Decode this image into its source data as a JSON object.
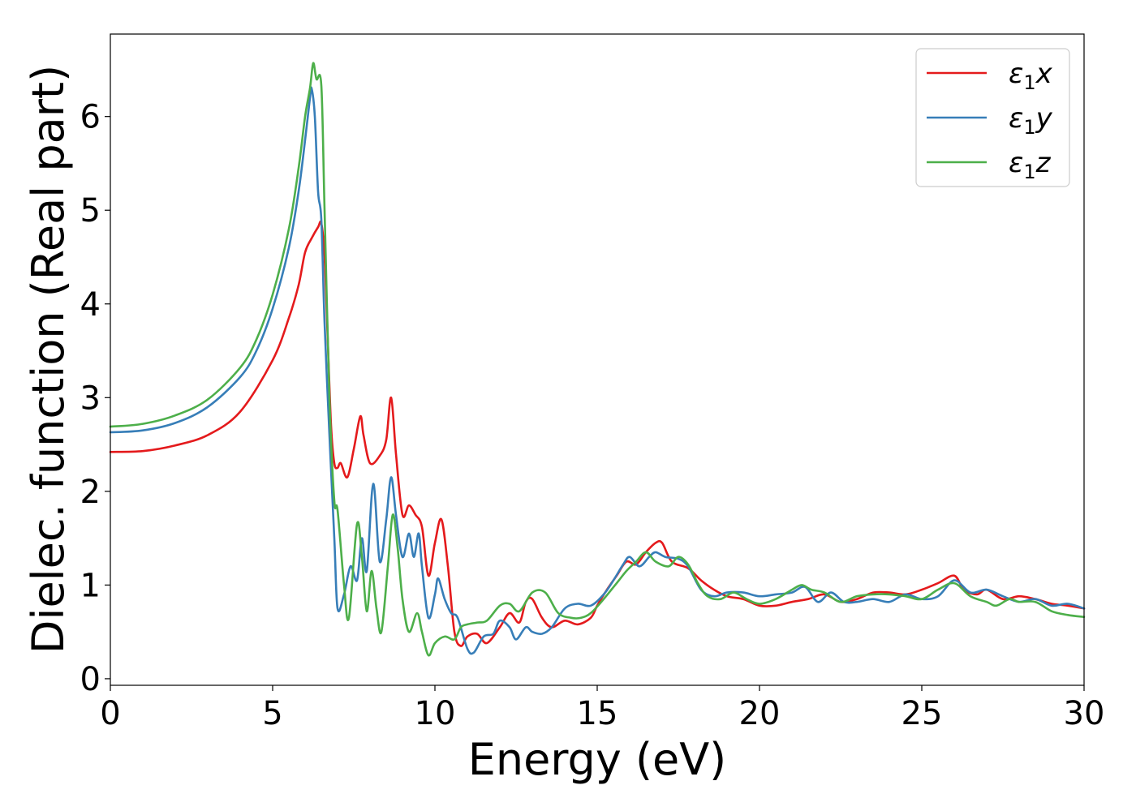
{
  "chart_data": {
    "type": "line",
    "title": "",
    "xlabel": "Energy (eV)",
    "ylabel": "Dielec. function (Real part)",
    "xlim": [
      0,
      30
    ],
    "ylim": [
      -0.07,
      6.88
    ],
    "xticks": [
      0,
      5,
      10,
      15,
      20,
      25,
      30
    ],
    "xtick_labels": [
      "0",
      "5",
      "10",
      "15",
      "20",
      "25",
      "30"
    ],
    "yticks": [
      0,
      1,
      2,
      3,
      4,
      5,
      6
    ],
    "ytick_labels": [
      "0",
      "1",
      "2",
      "3",
      "4",
      "5",
      "6"
    ],
    "grid": false,
    "legend_position": "top-right",
    "series": [
      {
        "name": "ε₁x",
        "legend_base": "ε",
        "legend_sub": "1",
        "legend_tail": "x",
        "color": "#e41a1c",
        "points": [
          [
            0,
            2.42
          ],
          [
            1,
            2.43
          ],
          [
            2,
            2.49
          ],
          [
            3,
            2.6
          ],
          [
            4,
            2.85
          ],
          [
            5,
            3.4
          ],
          [
            5.5,
            3.85
          ],
          [
            5.8,
            4.2
          ],
          [
            6.0,
            4.55
          ],
          [
            6.2,
            4.7
          ],
          [
            6.4,
            4.82
          ],
          [
            6.5,
            4.86
          ],
          [
            6.6,
            4.5
          ],
          [
            6.7,
            3.6
          ],
          [
            6.8,
            2.7
          ],
          [
            6.9,
            2.3
          ],
          [
            7.0,
            2.25
          ],
          [
            7.1,
            2.3
          ],
          [
            7.3,
            2.15
          ],
          [
            7.5,
            2.45
          ],
          [
            7.7,
            2.8
          ],
          [
            7.8,
            2.6
          ],
          [
            8.0,
            2.3
          ],
          [
            8.3,
            2.38
          ],
          [
            8.5,
            2.55
          ],
          [
            8.65,
            3.0
          ],
          [
            8.8,
            2.4
          ],
          [
            9.0,
            1.75
          ],
          [
            9.2,
            1.85
          ],
          [
            9.4,
            1.75
          ],
          [
            9.6,
            1.62
          ],
          [
            9.8,
            1.1
          ],
          [
            10.0,
            1.45
          ],
          [
            10.2,
            1.7
          ],
          [
            10.4,
            1.2
          ],
          [
            10.6,
            0.5
          ],
          [
            10.8,
            0.35
          ],
          [
            11.0,
            0.45
          ],
          [
            11.3,
            0.48
          ],
          [
            11.6,
            0.38
          ],
          [
            12.0,
            0.55
          ],
          [
            12.3,
            0.7
          ],
          [
            12.6,
            0.6
          ],
          [
            12.8,
            0.82
          ],
          [
            13.0,
            0.85
          ],
          [
            13.3,
            0.65
          ],
          [
            13.6,
            0.55
          ],
          [
            14.0,
            0.62
          ],
          [
            14.4,
            0.58
          ],
          [
            14.8,
            0.65
          ],
          [
            15.0,
            0.78
          ],
          [
            15.3,
            0.95
          ],
          [
            15.6,
            1.1
          ],
          [
            15.9,
            1.25
          ],
          [
            16.2,
            1.22
          ],
          [
            16.5,
            1.35
          ],
          [
            16.8,
            1.45
          ],
          [
            17.0,
            1.45
          ],
          [
            17.3,
            1.25
          ],
          [
            17.8,
            1.18
          ],
          [
            18.2,
            1.05
          ],
          [
            18.6,
            0.95
          ],
          [
            19.0,
            0.88
          ],
          [
            19.5,
            0.85
          ],
          [
            20.0,
            0.78
          ],
          [
            20.5,
            0.78
          ],
          [
            21.0,
            0.82
          ],
          [
            21.5,
            0.85
          ],
          [
            22.0,
            0.9
          ],
          [
            22.5,
            0.82
          ],
          [
            23.0,
            0.85
          ],
          [
            23.5,
            0.92
          ],
          [
            24.0,
            0.92
          ],
          [
            24.5,
            0.9
          ],
          [
            25.0,
            0.95
          ],
          [
            25.5,
            1.02
          ],
          [
            26.0,
            1.1
          ],
          [
            26.3,
            0.95
          ],
          [
            26.7,
            0.9
          ],
          [
            27.0,
            0.95
          ],
          [
            27.5,
            0.85
          ],
          [
            28.0,
            0.88
          ],
          [
            28.5,
            0.85
          ],
          [
            29.0,
            0.8
          ],
          [
            29.5,
            0.78
          ],
          [
            30.0,
            0.75
          ]
        ]
      },
      {
        "name": "ε₁y",
        "legend_base": "ε",
        "legend_sub": "1",
        "legend_tail": "y",
        "color": "#377eb8",
        "points": [
          [
            0,
            2.63
          ],
          [
            1,
            2.65
          ],
          [
            2,
            2.73
          ],
          [
            3,
            2.9
          ],
          [
            4,
            3.22
          ],
          [
            4.5,
            3.5
          ],
          [
            5,
            3.95
          ],
          [
            5.5,
            4.6
          ],
          [
            5.8,
            5.2
          ],
          [
            6.0,
            5.75
          ],
          [
            6.15,
            6.2
          ],
          [
            6.2,
            6.3
          ],
          [
            6.3,
            6.0
          ],
          [
            6.4,
            5.2
          ],
          [
            6.5,
            4.9
          ],
          [
            6.6,
            3.8
          ],
          [
            6.75,
            2.6
          ],
          [
            6.9,
            1.5
          ],
          [
            7.0,
            0.75
          ],
          [
            7.2,
            0.9
          ],
          [
            7.4,
            1.2
          ],
          [
            7.6,
            1.05
          ],
          [
            7.75,
            1.5
          ],
          [
            7.9,
            1.15
          ],
          [
            8.1,
            2.08
          ],
          [
            8.3,
            1.25
          ],
          [
            8.5,
            1.7
          ],
          [
            8.65,
            2.15
          ],
          [
            8.8,
            1.75
          ],
          [
            9.0,
            1.3
          ],
          [
            9.2,
            1.55
          ],
          [
            9.35,
            1.3
          ],
          [
            9.5,
            1.55
          ],
          [
            9.6,
            1.2
          ],
          [
            9.8,
            0.65
          ],
          [
            10.0,
            0.9
          ],
          [
            10.1,
            1.07
          ],
          [
            10.3,
            0.85
          ],
          [
            10.5,
            0.7
          ],
          [
            10.7,
            0.65
          ],
          [
            11.0,
            0.32
          ],
          [
            11.2,
            0.28
          ],
          [
            11.5,
            0.45
          ],
          [
            11.8,
            0.48
          ],
          [
            12.0,
            0.62
          ],
          [
            12.3,
            0.55
          ],
          [
            12.5,
            0.42
          ],
          [
            12.8,
            0.55
          ],
          [
            13.0,
            0.5
          ],
          [
            13.3,
            0.48
          ],
          [
            13.6,
            0.55
          ],
          [
            14.0,
            0.75
          ],
          [
            14.4,
            0.8
          ],
          [
            14.8,
            0.78
          ],
          [
            15.2,
            0.9
          ],
          [
            15.5,
            1.05
          ],
          [
            15.8,
            1.22
          ],
          [
            16.0,
            1.3
          ],
          [
            16.3,
            1.2
          ],
          [
            16.6,
            1.3
          ],
          [
            16.8,
            1.35
          ],
          [
            17.1,
            1.3
          ],
          [
            17.5,
            1.28
          ],
          [
            17.8,
            1.2
          ],
          [
            18.2,
            0.95
          ],
          [
            18.6,
            0.88
          ],
          [
            19.0,
            0.92
          ],
          [
            19.5,
            0.92
          ],
          [
            20.0,
            0.88
          ],
          [
            20.5,
            0.9
          ],
          [
            21.0,
            0.92
          ],
          [
            21.4,
            0.98
          ],
          [
            21.8,
            0.82
          ],
          [
            22.2,
            0.92
          ],
          [
            22.6,
            0.82
          ],
          [
            23.0,
            0.82
          ],
          [
            23.5,
            0.85
          ],
          [
            24.0,
            0.82
          ],
          [
            24.5,
            0.9
          ],
          [
            25.0,
            0.85
          ],
          [
            25.5,
            0.88
          ],
          [
            26.0,
            1.05
          ],
          [
            26.5,
            0.92
          ],
          [
            27.0,
            0.95
          ],
          [
            27.5,
            0.88
          ],
          [
            28.0,
            0.82
          ],
          [
            28.5,
            0.85
          ],
          [
            29.0,
            0.78
          ],
          [
            29.5,
            0.8
          ],
          [
            30.0,
            0.75
          ]
        ]
      },
      {
        "name": "ε₁z",
        "legend_base": "ε",
        "legend_sub": "1",
        "legend_tail": "z",
        "color": "#4daf4a",
        "points": [
          [
            0,
            2.69
          ],
          [
            1,
            2.72
          ],
          [
            2,
            2.81
          ],
          [
            3,
            2.98
          ],
          [
            4,
            3.32
          ],
          [
            4.5,
            3.62
          ],
          [
            5,
            4.1
          ],
          [
            5.5,
            4.8
          ],
          [
            5.8,
            5.45
          ],
          [
            6.0,
            6.0
          ],
          [
            6.15,
            6.3
          ],
          [
            6.25,
            6.57
          ],
          [
            6.35,
            6.4
          ],
          [
            6.5,
            6.33
          ],
          [
            6.6,
            5.0
          ],
          [
            6.75,
            3.0
          ],
          [
            6.9,
            1.9
          ],
          [
            7.0,
            1.8
          ],
          [
            7.2,
            1.0
          ],
          [
            7.35,
            0.65
          ],
          [
            7.6,
            1.65
          ],
          [
            7.75,
            1.3
          ],
          [
            7.9,
            0.72
          ],
          [
            8.05,
            1.15
          ],
          [
            8.2,
            0.75
          ],
          [
            8.35,
            0.5
          ],
          [
            8.55,
            1.2
          ],
          [
            8.7,
            1.75
          ],
          [
            8.85,
            1.4
          ],
          [
            9.0,
            0.85
          ],
          [
            9.2,
            0.5
          ],
          [
            9.45,
            0.7
          ],
          [
            9.6,
            0.5
          ],
          [
            9.8,
            0.25
          ],
          [
            10.0,
            0.38
          ],
          [
            10.3,
            0.45
          ],
          [
            10.6,
            0.42
          ],
          [
            10.8,
            0.55
          ],
          [
            11.0,
            0.58
          ],
          [
            11.3,
            0.6
          ],
          [
            11.6,
            0.62
          ],
          [
            12.0,
            0.78
          ],
          [
            12.3,
            0.8
          ],
          [
            12.6,
            0.72
          ],
          [
            13.0,
            0.92
          ],
          [
            13.4,
            0.92
          ],
          [
            13.8,
            0.7
          ],
          [
            14.2,
            0.65
          ],
          [
            14.5,
            0.65
          ],
          [
            14.8,
            0.7
          ],
          [
            15.2,
            0.85
          ],
          [
            15.6,
            1.02
          ],
          [
            15.9,
            1.15
          ],
          [
            16.2,
            1.25
          ],
          [
            16.5,
            1.35
          ],
          [
            16.8,
            1.25
          ],
          [
            17.2,
            1.2
          ],
          [
            17.5,
            1.3
          ],
          [
            17.8,
            1.22
          ],
          [
            18.1,
            1.02
          ],
          [
            18.4,
            0.88
          ],
          [
            18.8,
            0.85
          ],
          [
            19.2,
            0.92
          ],
          [
            19.6,
            0.85
          ],
          [
            20.0,
            0.8
          ],
          [
            20.5,
            0.85
          ],
          [
            21.0,
            0.95
          ],
          [
            21.3,
            1.0
          ],
          [
            21.6,
            0.95
          ],
          [
            22.0,
            0.92
          ],
          [
            22.5,
            0.82
          ],
          [
            23.0,
            0.88
          ],
          [
            23.5,
            0.9
          ],
          [
            24.0,
            0.9
          ],
          [
            24.5,
            0.88
          ],
          [
            25.0,
            0.85
          ],
          [
            25.5,
            0.95
          ],
          [
            26.0,
            1.02
          ],
          [
            26.5,
            0.88
          ],
          [
            27.0,
            0.82
          ],
          [
            27.3,
            0.78
          ],
          [
            27.7,
            0.85
          ],
          [
            28.0,
            0.82
          ],
          [
            28.5,
            0.82
          ],
          [
            29.0,
            0.72
          ],
          [
            29.5,
            0.68
          ],
          [
            30.0,
            0.66
          ]
        ]
      }
    ]
  }
}
